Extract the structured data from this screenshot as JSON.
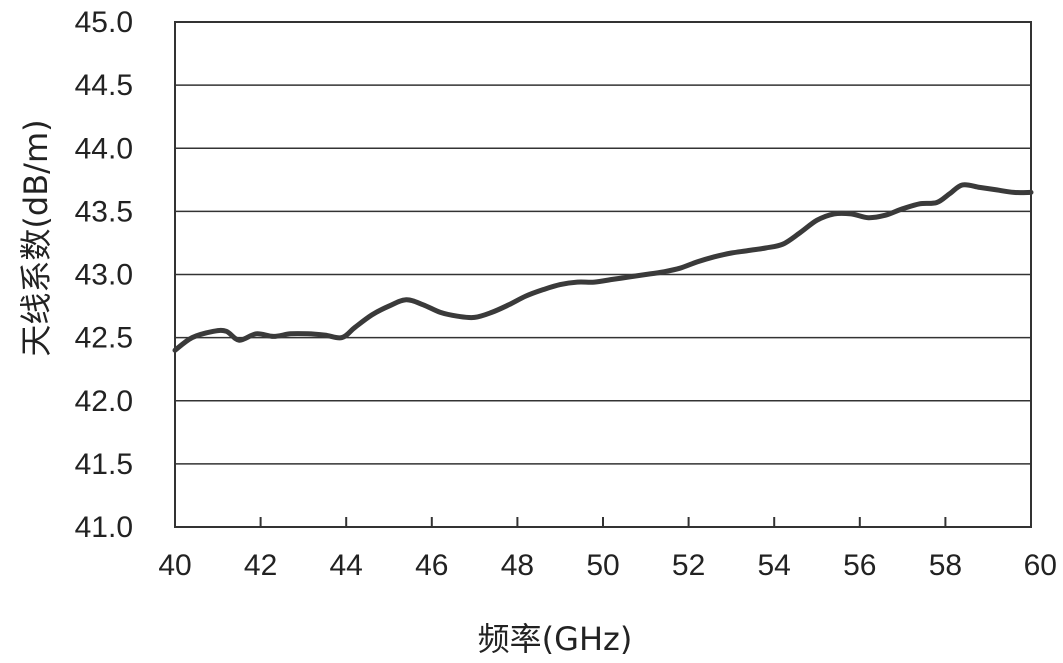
{
  "chart_data": {
    "type": "line",
    "title": "",
    "xlabel": "频率(GHz)",
    "ylabel": "天线系数(dB/m)",
    "xlim": [
      40,
      60
    ],
    "ylim": [
      41.0,
      45.0
    ],
    "xticks": [
      "40",
      "42",
      "44",
      "46",
      "48",
      "50",
      "52",
      "54",
      "56",
      "58",
      "60"
    ],
    "yticks": [
      "45.0",
      "44.5",
      "44.0",
      "43.5",
      "43.0",
      "42.5",
      "42.0",
      "41.5",
      "41.0"
    ],
    "grid": "horizontal",
    "legend": "none",
    "series": [
      {
        "color": "#3a3a3a",
        "x": [
          40.0,
          40.4,
          40.9,
          41.2,
          41.5,
          41.9,
          42.3,
          42.7,
          43.1,
          43.5,
          43.9,
          44.2,
          44.6,
          45.0,
          45.4,
          45.8,
          46.2,
          46.6,
          47.0,
          47.4,
          47.8,
          48.2,
          48.6,
          49.0,
          49.4,
          49.8,
          50.2,
          50.6,
          51.0,
          51.4,
          51.8,
          52.2,
          52.6,
          53.0,
          53.4,
          53.8,
          54.2,
          54.6,
          55.0,
          55.4,
          55.8,
          56.2,
          56.6,
          57.0,
          57.4,
          57.8,
          58.1,
          58.4,
          58.8,
          59.2,
          59.6,
          60.0
        ],
        "y": [
          42.4,
          42.5,
          42.55,
          42.55,
          42.48,
          42.53,
          42.51,
          42.53,
          42.53,
          42.52,
          42.5,
          42.58,
          42.68,
          42.75,
          42.8,
          42.76,
          42.7,
          42.67,
          42.66,
          42.7,
          42.76,
          42.83,
          42.88,
          42.92,
          42.94,
          42.94,
          42.96,
          42.98,
          43.0,
          43.02,
          43.05,
          43.1,
          43.14,
          43.17,
          43.19,
          43.21,
          43.24,
          43.33,
          43.43,
          43.48,
          43.48,
          43.45,
          43.47,
          43.52,
          43.56,
          43.57,
          43.64,
          43.71,
          43.69,
          43.67,
          43.65,
          43.65
        ]
      }
    ]
  }
}
